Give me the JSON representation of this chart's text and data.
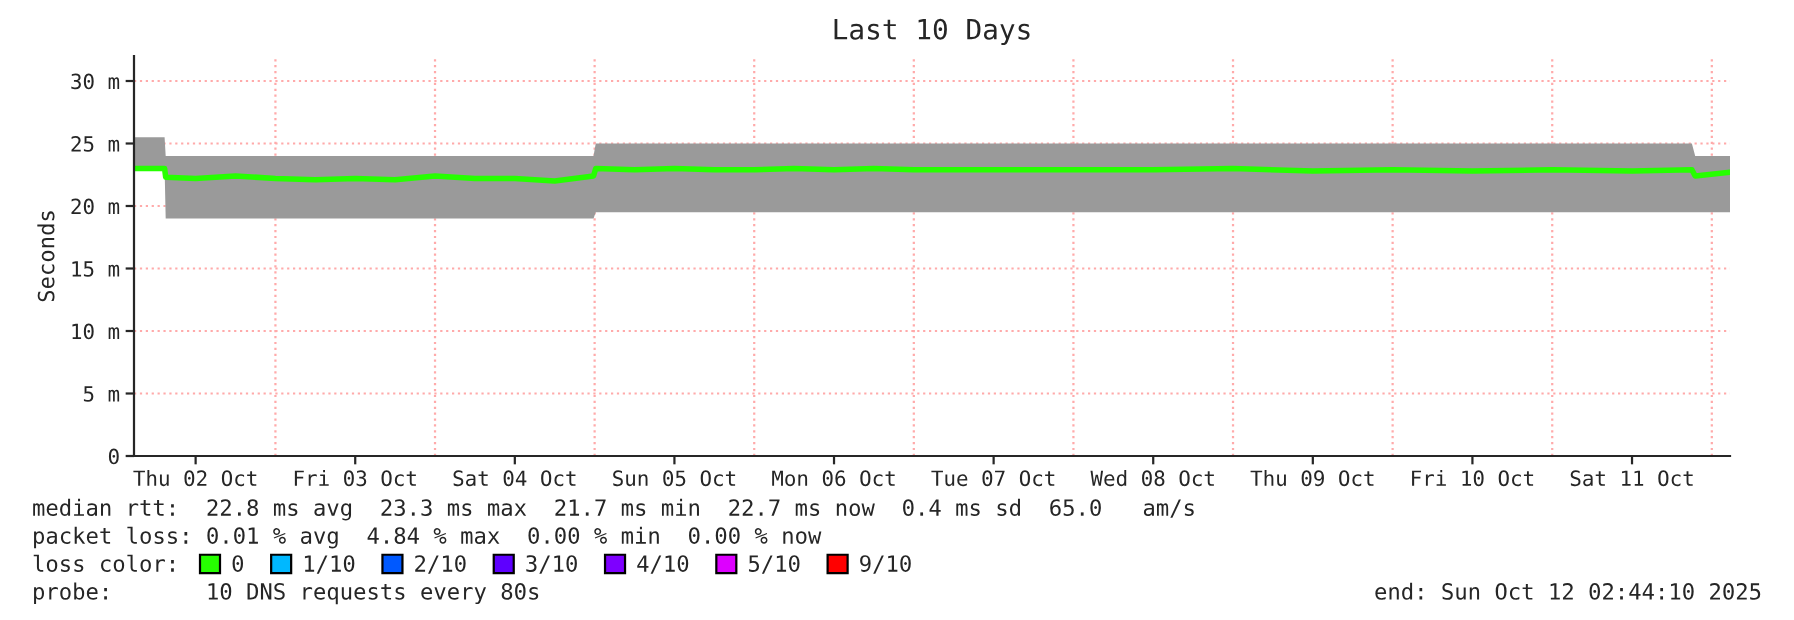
{
  "chart_data": {
    "type": "line",
    "title": "Last 10 Days",
    "ylabel": "Seconds",
    "legend_title": "loss color:",
    "x": [
      "2025-10-02T02:44",
      "2025-10-02T07:20",
      "2025-10-02T07:30",
      "2025-10-02T12:00",
      "2025-10-02T18:00",
      "2025-10-03T00:00",
      "2025-10-03T06:00",
      "2025-10-03T12:00",
      "2025-10-03T18:00",
      "2025-10-04T00:00",
      "2025-10-04T06:00",
      "2025-10-04T12:00",
      "2025-10-04T18:00",
      "2025-10-04T23:50",
      "2025-10-05T00:10",
      "2025-10-05T06:00",
      "2025-10-05T12:00",
      "2025-10-05T18:00",
      "2025-10-06T00:00",
      "2025-10-06T06:00",
      "2025-10-06T12:00",
      "2025-10-06T18:00",
      "2025-10-07T00:00",
      "2025-10-07T12:00",
      "2025-10-08T00:00",
      "2025-10-08T12:00",
      "2025-10-09T00:00",
      "2025-10-09T12:00",
      "2025-10-10T00:00",
      "2025-10-10T12:00",
      "2025-10-11T00:00",
      "2025-10-11T12:00",
      "2025-10-11T21:00",
      "2025-10-11T21:30",
      "2025-10-12T02:44"
    ],
    "series": [
      {
        "name": "0",
        "color": "#26ff00",
        "values": [
          23,
          23,
          22.3,
          22.2,
          22.4,
          22.2,
          22.1,
          22.2,
          22.1,
          22.4,
          22.2,
          22.2,
          22.0,
          22.4,
          23.0,
          22.9,
          23.0,
          22.9,
          22.9,
          23.0,
          22.9,
          23.0,
          22.9,
          22.9,
          22.9,
          22.9,
          23.0,
          22.8,
          22.9,
          22.8,
          22.9,
          22.8,
          22.9,
          22.4,
          22.7
        ],
        "lower": [
          23,
          23,
          19,
          19,
          19,
          19,
          19,
          19,
          19,
          19,
          19,
          19,
          19,
          19,
          19.5,
          19.5,
          19.5,
          19.5,
          19.5,
          19.5,
          19.5,
          19.5,
          19.5,
          19.5,
          19.5,
          19.5,
          19.5,
          19.5,
          19.5,
          19.5,
          19.5,
          19.5,
          19.5,
          19.5,
          19.5
        ],
        "upper": [
          25.5,
          25.5,
          24,
          24,
          24,
          24,
          24,
          24,
          24,
          24,
          24,
          24,
          24,
          24,
          25,
          25,
          25,
          25,
          25,
          25,
          25,
          25,
          25,
          25,
          25,
          25,
          25,
          25,
          25,
          25,
          25,
          25,
          25,
          24,
          24
        ]
      },
      {
        "name": "1/10",
        "color": "#00b8ff",
        "values": [
          null,
          null,
          null,
          null,
          null,
          null,
          null,
          null,
          null,
          null,
          null,
          null,
          null,
          null,
          null,
          null,
          null,
          null,
          null,
          null,
          null,
          null,
          null,
          null,
          null,
          null,
          null,
          null,
          null,
          null,
          null,
          null,
          null,
          null,
          null
        ]
      },
      {
        "name": "2/10",
        "color": "#0059ff",
        "values": [
          null,
          null,
          null,
          null,
          null,
          null,
          null,
          null,
          null,
          null,
          null,
          null,
          null,
          null,
          null,
          null,
          null,
          null,
          null,
          null,
          null,
          null,
          null,
          null,
          null,
          null,
          null,
          null,
          null,
          null,
          null,
          null,
          null,
          null,
          null
        ]
      },
      {
        "name": "3/10",
        "color": "#5e00ff",
        "values": [
          null,
          null,
          null,
          null,
          null,
          null,
          null,
          null,
          null,
          null,
          null,
          null,
          null,
          null,
          null,
          null,
          null,
          null,
          null,
          null,
          null,
          null,
          null,
          null,
          null,
          null,
          null,
          null,
          null,
          null,
          null,
          null,
          null,
          null,
          null
        ]
      },
      {
        "name": "4/10",
        "color": "#7e00ff",
        "values": [
          null,
          null,
          null,
          null,
          null,
          null,
          null,
          null,
          null,
          null,
          null,
          null,
          null,
          null,
          null,
          null,
          null,
          null,
          null,
          null,
          null,
          null,
          null,
          null,
          null,
          null,
          null,
          null,
          null,
          null,
          null,
          null,
          null,
          null,
          null
        ]
      },
      {
        "name": "5/10",
        "color": "#dd00ff",
        "values": [
          null,
          null,
          null,
          null,
          null,
          null,
          null,
          null,
          null,
          null,
          null,
          null,
          null,
          null,
          null,
          null,
          null,
          null,
          null,
          null,
          null,
          null,
          null,
          null,
          null,
          null,
          null,
          null,
          null,
          null,
          null,
          null,
          null,
          null,
          null
        ]
      },
      {
        "name": "9/10",
        "color": "#ff0000",
        "values": [
          null,
          null,
          null,
          null,
          null,
          null,
          null,
          null,
          null,
          null,
          null,
          null,
          null,
          null,
          null,
          null,
          null,
          null,
          null,
          null,
          null,
          null,
          null,
          null,
          null,
          null,
          null,
          null,
          null,
          null,
          null,
          null,
          null,
          null,
          null
        ]
      }
    ],
    "xlim": [
      "2025-10-02T02:44",
      "2025-10-12T02:44"
    ],
    "xticks": [
      {
        "value": "2025-10-02T12:00",
        "label": "Thu 02 Oct"
      },
      {
        "value": "2025-10-03T12:00",
        "label": "Fri 03 Oct"
      },
      {
        "value": "2025-10-04T12:00",
        "label": "Sat 04 Oct"
      },
      {
        "value": "2025-10-05T12:00",
        "label": "Sun 05 Oct"
      },
      {
        "value": "2025-10-06T12:00",
        "label": "Mon 06 Oct"
      },
      {
        "value": "2025-10-07T12:00",
        "label": "Tue 07 Oct"
      },
      {
        "value": "2025-10-08T12:00",
        "label": "Wed 08 Oct"
      },
      {
        "value": "2025-10-09T12:00",
        "label": "Thu 09 Oct"
      },
      {
        "value": "2025-10-10T12:00",
        "label": "Fri 10 Oct"
      },
      {
        "value": "2025-10-11T12:00",
        "label": "Sat 11 Oct"
      }
    ],
    "ylim": [
      0,
      32
    ],
    "yticks": [
      0,
      {
        "value": 5,
        "label": "5 m"
      },
      {
        "value": 10,
        "label": "10 m"
      },
      {
        "value": 15,
        "label": "15 m"
      },
      {
        "value": 20,
        "label": "20 m"
      },
      {
        "value": 25,
        "label": "25 m"
      },
      {
        "value": 30,
        "label": "30 m"
      }
    ],
    "grid": "y",
    "ref_lines": [
      {
        "axis": "x",
        "value": "2025-10-03T00:00",
        "color": "#ffaaaa",
        "line_style": "dotted"
      },
      {
        "axis": "x",
        "value": "2025-10-04T00:00",
        "color": "#ffaaaa",
        "line_style": "dotted"
      },
      {
        "axis": "x",
        "value": "2025-10-05T00:00",
        "color": "#ffaaaa",
        "line_style": "dotted"
      },
      {
        "axis": "x",
        "value": "2025-10-06T00:00",
        "color": "#ffaaaa",
        "line_style": "dotted"
      },
      {
        "axis": "x",
        "value": "2025-10-07T00:00",
        "color": "#ffaaaa",
        "line_style": "dotted"
      },
      {
        "axis": "x",
        "value": "2025-10-08T00:00",
        "color": "#ffaaaa",
        "line_style": "dotted"
      },
      {
        "axis": "x",
        "value": "2025-10-09T00:00",
        "color": "#ffaaaa",
        "line_style": "dotted"
      },
      {
        "axis": "x",
        "value": "2025-10-10T00:00",
        "color": "#ffaaaa",
        "line_style": "dotted"
      },
      {
        "axis": "x",
        "value": "2025-10-11T00:00",
        "color": "#ffaaaa",
        "line_style": "dotted"
      },
      {
        "axis": "x",
        "value": "2025-10-12T00:00",
        "color": "#ffaaaa",
        "line_style": "dotted"
      }
    ],
    "legend": "bottom",
    "annotations": [
      "median rtt:  22.8 ms avg  23.3 ms max  21.7 ms min  22.7 ms now  0.4 ms sd  65.0   am/s",
      "packet loss: 0.01 % avg  4.84 % max  0.00 % min  0.00 % now",
      "probe:       10 DNS requests every 80s",
      "end: Sun Oct 12 02:44:10 2025"
    ]
  }
}
